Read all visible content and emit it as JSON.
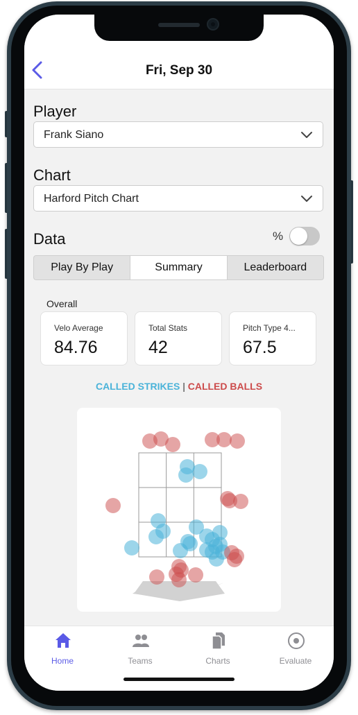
{
  "header": {
    "title": "Fri, Sep 30",
    "back_icon": "chevron-left-icon",
    "accent": "#5a5ae6"
  },
  "player": {
    "label": "Player",
    "value": "Frank Siano"
  },
  "chart_select": {
    "label": "Chart",
    "value": "Harford Pitch Chart"
  },
  "data_section": {
    "label": "Data",
    "percent_label": "%",
    "percent_toggle_on": false
  },
  "tabs": [
    {
      "label": "Play By Play",
      "active": false
    },
    {
      "label": "Summary",
      "active": true
    },
    {
      "label": "Leaderboard",
      "active": false
    }
  ],
  "overall": {
    "title": "Overall",
    "cards": [
      {
        "label": "Velo Average",
        "value": "84.76"
      },
      {
        "label": "Total Stats",
        "value": "42"
      },
      {
        "label": "Pitch Type 4...",
        "value": "67.5"
      }
    ]
  },
  "legend": {
    "strikes": "CALLED STRIKES",
    "separator": "|",
    "balls": "CALLED BALLS",
    "strike_color": "#4ab3d9",
    "ball_color": "#cc4b4b"
  },
  "tab_bar": [
    {
      "label": "Home",
      "icon": "home-icon",
      "active": true
    },
    {
      "label": "Teams",
      "icon": "users-icon",
      "active": false
    },
    {
      "label": "Charts",
      "icon": "documents-icon",
      "active": false
    },
    {
      "label": "Evaluate",
      "icon": "target-icon",
      "active": false
    }
  ]
}
